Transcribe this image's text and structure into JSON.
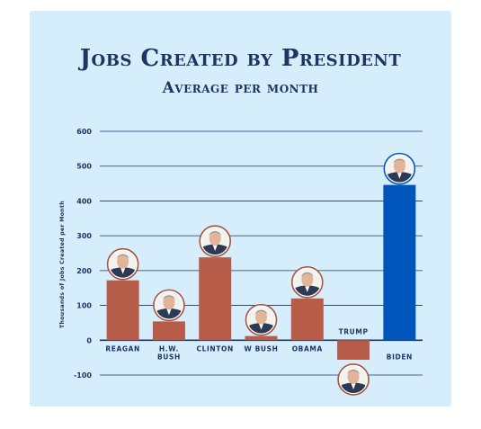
{
  "chart_data": {
    "type": "bar",
    "title": "Jobs Created by President",
    "subtitle": "Average per month",
    "ylabel": "Thousands of Jobs Created per Month",
    "ylim": [
      -100,
      600
    ],
    "yticks": [
      600,
      500,
      400,
      300,
      200,
      100,
      0,
      -100
    ],
    "grid": true,
    "categories": [
      "Reagan",
      "H.W. Bush",
      "Clinton",
      "W Bush",
      "Obama",
      "Trump",
      "Biden"
    ],
    "category_lines": [
      [
        "REAGAN"
      ],
      [
        "H.W.",
        "BUSH"
      ],
      [
        "CLINTON"
      ],
      [
        "W BUSH"
      ],
      [
        "OBAMA"
      ],
      [
        "TRUMP"
      ],
      [
        "BIDEN"
      ]
    ],
    "values": [
      172,
      54,
      238,
      12,
      120,
      -56,
      446
    ],
    "colors": [
      "#b85c4a",
      "#b85c4a",
      "#b85c4a",
      "#b85c4a",
      "#b85c4a",
      "#b85c4a",
      "#0055bb"
    ],
    "portrait_icons": [
      "reagan-portrait-icon",
      "hw-bush-portrait-icon",
      "clinton-portrait-icon",
      "w-bush-portrait-icon",
      "obama-portrait-icon",
      "trump-portrait-icon",
      "biden-portrait-icon"
    ]
  }
}
